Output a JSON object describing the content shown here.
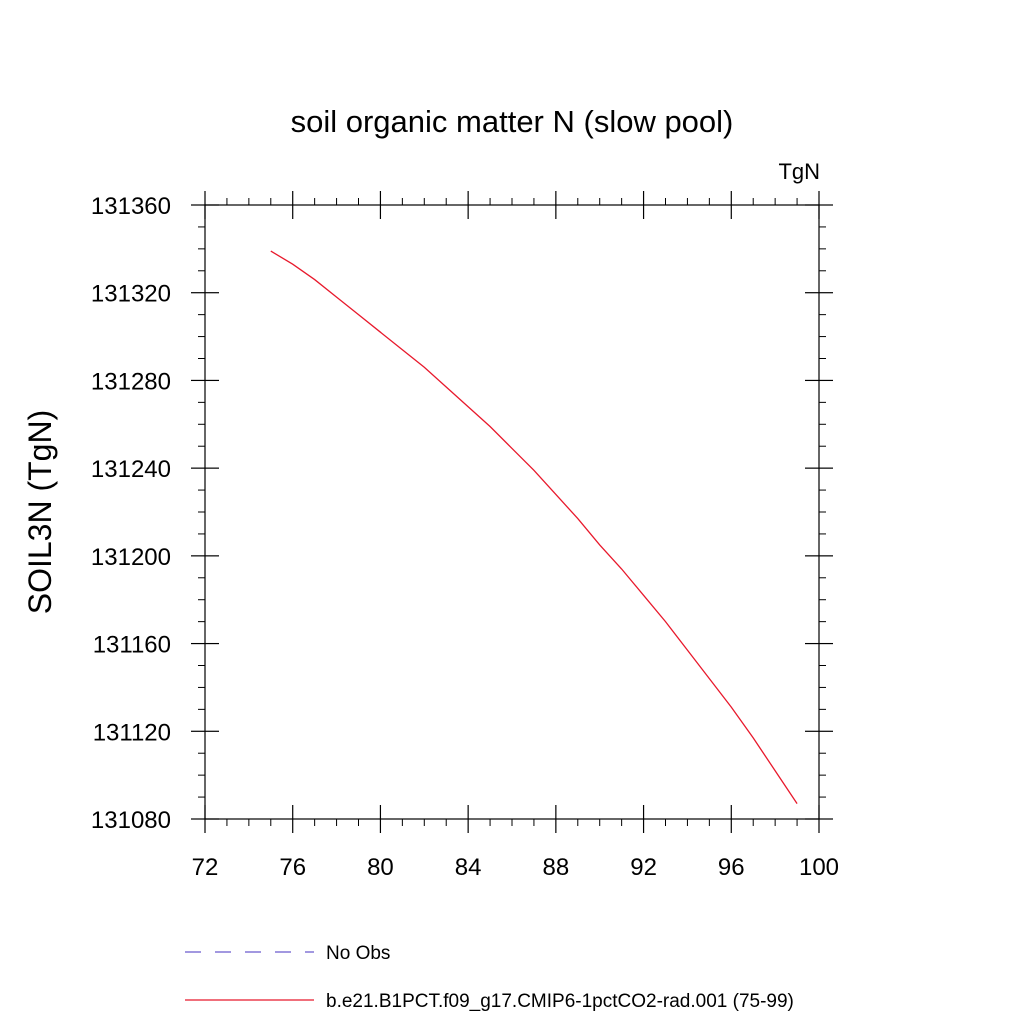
{
  "chart_data": {
    "type": "line",
    "title": "soil organic matter N (slow pool)",
    "units_label": "TgN",
    "xlabel": "",
    "ylabel": "SOIL3N  (TgN)",
    "xlim": [
      72,
      100
    ],
    "ylim": [
      131080,
      131360
    ],
    "x_ticks": [
      72,
      76,
      80,
      84,
      88,
      92,
      96,
      100
    ],
    "y_ticks": [
      131080,
      131120,
      131160,
      131200,
      131240,
      131280,
      131320,
      131360
    ],
    "grid": false,
    "legend_position": "bottom",
    "series": [
      {
        "name": "No Obs",
        "color": "#6a5acd",
        "dash": "dashed",
        "x": [],
        "y": []
      },
      {
        "name": "b.e21.B1PCT.f09_g17.CMIP6-1pctCO2-rad.001 (75-99)",
        "color": "#e8192c",
        "dash": "solid",
        "x": [
          75,
          76,
          77,
          78,
          79,
          80,
          81,
          82,
          83,
          84,
          85,
          86,
          87,
          88,
          89,
          90,
          91,
          92,
          93,
          94,
          95,
          96,
          97,
          98,
          99
        ],
        "y": [
          131339,
          131333,
          131326,
          131318,
          131310,
          131302,
          131294,
          131286,
          131277,
          131268,
          131259,
          131249,
          131239,
          131228,
          131217,
          131205,
          131194,
          131182,
          131170,
          131157,
          131144,
          131131,
          131117,
          131102,
          131087
        ]
      }
    ]
  }
}
